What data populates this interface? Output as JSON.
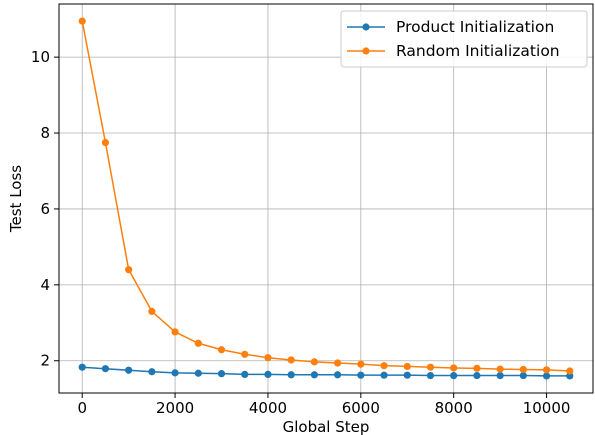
{
  "chart_data": {
    "type": "line",
    "xlabel": "Global Step",
    "ylabel": "Test Loss",
    "xlim": [
      -500,
      11000
    ],
    "ylim": [
      1.15,
      11.4
    ],
    "xticks": [
      0,
      2000,
      4000,
      6000,
      8000,
      10000
    ],
    "yticks": [
      2,
      4,
      6,
      8,
      10
    ],
    "grid": true,
    "legend_position": "top-right",
    "x": [
      0,
      500,
      1000,
      1500,
      2000,
      2500,
      3000,
      3500,
      4000,
      4500,
      5000,
      5500,
      6000,
      6500,
      7000,
      7500,
      8000,
      8500,
      9000,
      9500,
      10000,
      10500
    ],
    "series": [
      {
        "name": "Product Initialization",
        "color": "#1f77b4",
        "values": [
          1.83,
          1.79,
          1.75,
          1.71,
          1.68,
          1.67,
          1.66,
          1.64,
          1.64,
          1.63,
          1.63,
          1.63,
          1.62,
          1.62,
          1.62,
          1.61,
          1.61,
          1.61,
          1.61,
          1.61,
          1.6,
          1.6
        ]
      },
      {
        "name": "Random Initialization",
        "color": "#ff7f0e",
        "values": [
          10.95,
          7.75,
          4.4,
          3.3,
          2.76,
          2.46,
          2.29,
          2.17,
          2.08,
          2.02,
          1.97,
          1.94,
          1.91,
          1.87,
          1.85,
          1.83,
          1.81,
          1.8,
          1.78,
          1.77,
          1.76,
          1.73
        ]
      }
    ]
  }
}
